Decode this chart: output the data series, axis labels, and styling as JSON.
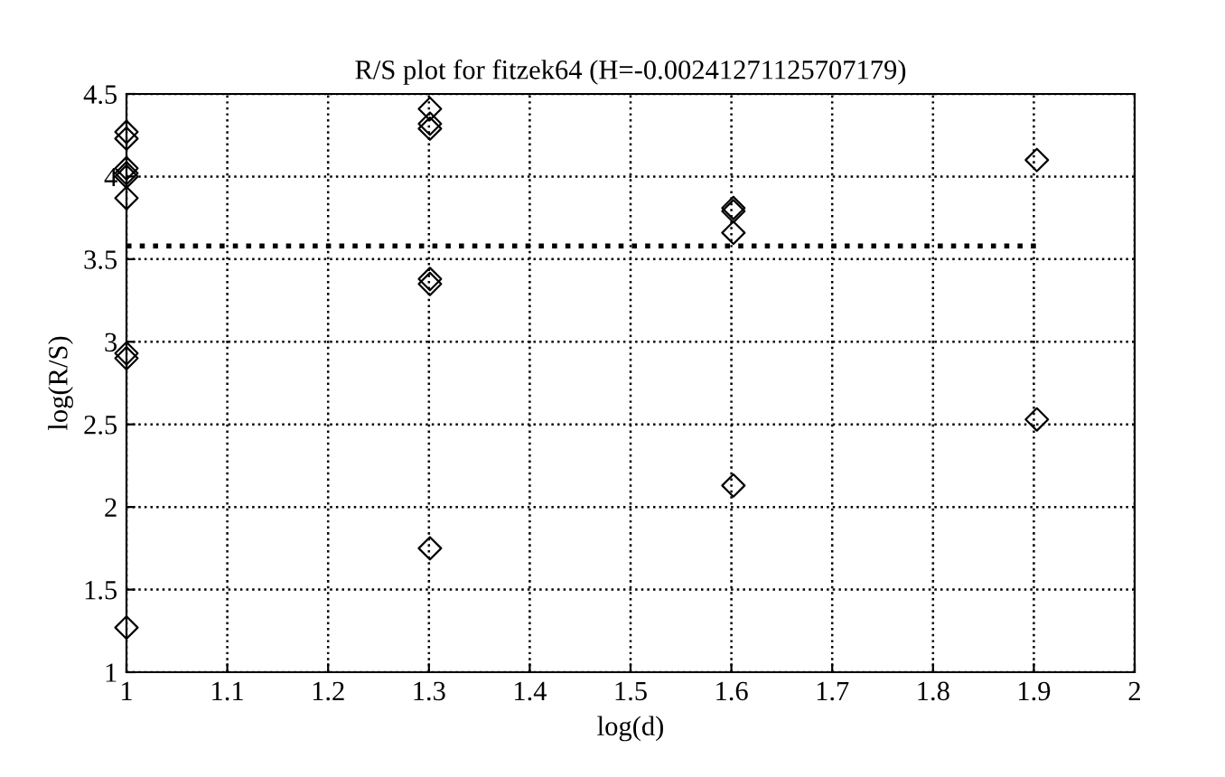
{
  "chart_data": {
    "type": "scatter",
    "title": "R/S plot for fitzek64 (H=-0.00241271125707179)",
    "xlabel": "log(d)",
    "ylabel": "log(R/S)",
    "series": [
      {
        "color": "#000000",
        "marker": "diamond",
        "x": [
          1,
          1,
          1,
          1,
          1,
          1,
          1,
          1,
          1,
          1.301,
          1.301,
          1.301,
          1.301,
          1.301,
          1.301,
          1.602,
          1.602,
          1.602,
          1.602,
          1.903,
          1.903
        ],
        "values": [
          4.27,
          4.23,
          4.05,
          4.02,
          4.0,
          3.87,
          2.93,
          2.9,
          1.27,
          4.41,
          4.32,
          4.29,
          3.38,
          3.35,
          1.75,
          3.81,
          3.79,
          3.66,
          2.13,
          4.1,
          2.53
        ]
      },
      {
        "type": "line",
        "color": "#000000",
        "line_style": "dotted",
        "x": [
          1,
          1.903
        ],
        "values": [
          3.58,
          3.58
        ]
      }
    ],
    "xlim": [
      1,
      2
    ],
    "ylim": [
      1,
      4.5
    ],
    "xticks": [
      1,
      1.1,
      1.2,
      1.3,
      1.4,
      1.5,
      1.6,
      1.7,
      1.8,
      1.9,
      2
    ],
    "yticks": [
      1,
      1.5,
      2,
      2.5,
      3,
      3.5,
      4,
      4.5
    ],
    "grid": true
  }
}
